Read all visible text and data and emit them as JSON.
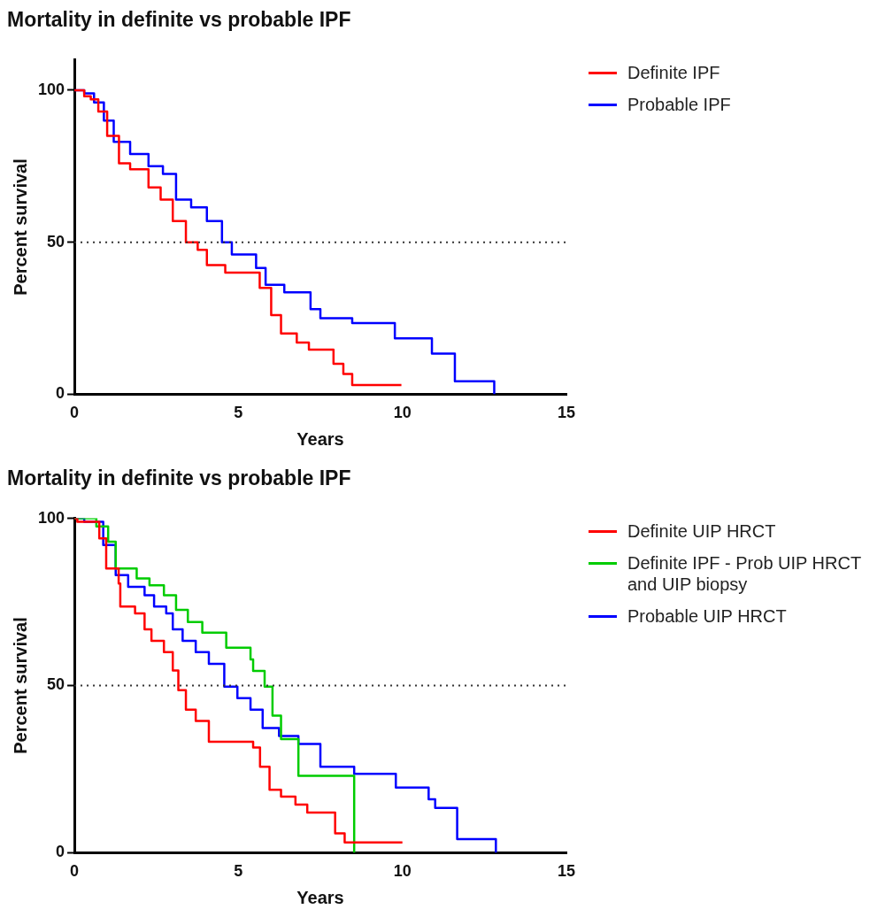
{
  "chart_data": [
    {
      "type": "step",
      "title": "Mortality in definite vs probable IPF",
      "xlabel": "Years",
      "ylabel": "Percent survival",
      "xlim": [
        0,
        15
      ],
      "xticks": [
        0,
        5,
        10,
        15
      ],
      "ylim": [
        0,
        110
      ],
      "yticks": [
        0,
        50,
        100
      ],
      "grid": false,
      "legend": "top right",
      "marker": "none",
      "line_style": "solid",
      "ref_lines": [
        {
          "axis": "y",
          "value": 50,
          "line_style": "dotted",
          "color": "#333333"
        }
      ],
      "series": [
        {
          "name": "Definite IPF",
          "color": "#ff0000",
          "x": [
            0,
            0.3,
            0.5,
            0.73,
            1.0,
            1.36,
            1.7,
            2.26,
            2.63,
            3.0,
            3.4,
            3.76,
            4.04,
            4.6,
            5.65,
            6.0,
            6.3,
            6.78,
            7.15,
            7.9,
            8.2,
            8.47,
            9.97
          ],
          "values": [
            100,
            98,
            97,
            93,
            85,
            76,
            74,
            68,
            64,
            57,
            50,
            47.5,
            42.5,
            40,
            35,
            26,
            20,
            17,
            14.7,
            10,
            6.7,
            3,
            3
          ]
        },
        {
          "name": "Probable IPF",
          "color": "#0000ff",
          "x": [
            0,
            0.3,
            0.6,
            0.9,
            1.2,
            1.7,
            2.26,
            2.7,
            3.1,
            3.56,
            4.04,
            4.5,
            4.8,
            5.54,
            5.83,
            6.4,
            7.2,
            7.5,
            8.47,
            9.77,
            10.7,
            10.9,
            11.6,
            12.8
          ],
          "values": [
            100,
            99,
            96,
            90,
            83,
            79,
            75,
            72.5,
            64,
            61.5,
            57,
            50,
            46,
            41.5,
            36,
            33.5,
            28,
            25,
            23.4,
            18.4,
            18.4,
            13.4,
            4.3,
            0
          ]
        }
      ]
    },
    {
      "type": "step",
      "title": "Mortality in definite vs probable IPF",
      "xlabel": "Years",
      "ylabel": "Percent survival",
      "xlim": [
        0,
        15
      ],
      "xticks": [
        0,
        5,
        10,
        15
      ],
      "ylim": [
        0,
        100
      ],
      "yticks": [
        0,
        50,
        100
      ],
      "grid": false,
      "legend": "top right",
      "marker": "none",
      "line_style": "solid",
      "ref_lines": [
        {
          "axis": "y",
          "value": 50,
          "line_style": "dotted",
          "color": "#333333"
        }
      ],
      "series": [
        {
          "name": "Definite UIP HRCT",
          "color": "#ff0000",
          "x": [
            0,
            0.09,
            0.76,
            0.97,
            1.35,
            1.4,
            1.85,
            2.14,
            2.35,
            2.73,
            3.0,
            3.17,
            3.4,
            3.7,
            4.1,
            5.45,
            5.66,
            5.95,
            6.3,
            6.74,
            7.1,
            7.95,
            8.24,
            10.0
          ],
          "values": [
            100,
            99,
            94,
            85,
            80.5,
            73.6,
            71.6,
            66.8,
            63.4,
            60,
            54.5,
            48.6,
            42.8,
            39.4,
            33.2,
            31.5,
            25.7,
            18.8,
            16.8,
            14.4,
            12,
            5.8,
            3.1,
            3.1
          ]
        },
        {
          "name": "Definite IPF - Prob UIP HRCT and UIP biopsy",
          "color": "#00cc00",
          "x": [
            0,
            0.67,
            1.03,
            1.26,
            1.9,
            2.29,
            2.73,
            3.1,
            3.46,
            3.9,
            4.63,
            5.37,
            5.45,
            5.8,
            6.04,
            6.3,
            6.83,
            8.53
          ],
          "values": [
            100,
            97.6,
            93,
            85,
            82,
            80,
            77,
            72.6,
            69,
            65.8,
            61.3,
            57.8,
            54.4,
            49.7,
            41,
            34,
            23,
            0
          ]
        },
        {
          "name": "Probable UIP HRCT",
          "color": "#0000ff",
          "x": [
            0,
            0.3,
            0.88,
            1.26,
            1.64,
            2.14,
            2.43,
            2.8,
            3.0,
            3.3,
            3.7,
            4.1,
            4.57,
            4.97,
            5.37,
            5.74,
            6.24,
            6.83,
            7.5,
            8.53,
            9.8,
            10.8,
            11.0,
            11.67,
            12.85
          ],
          "values": [
            100,
            99,
            92,
            83,
            79.5,
            77,
            73.6,
            71.6,
            66.8,
            63.4,
            60,
            56.5,
            49.7,
            46.2,
            42.8,
            37.3,
            34.9,
            32.5,
            25.7,
            23.6,
            19.5,
            16,
            13.4,
            4.1,
            0
          ]
        }
      ]
    }
  ]
}
